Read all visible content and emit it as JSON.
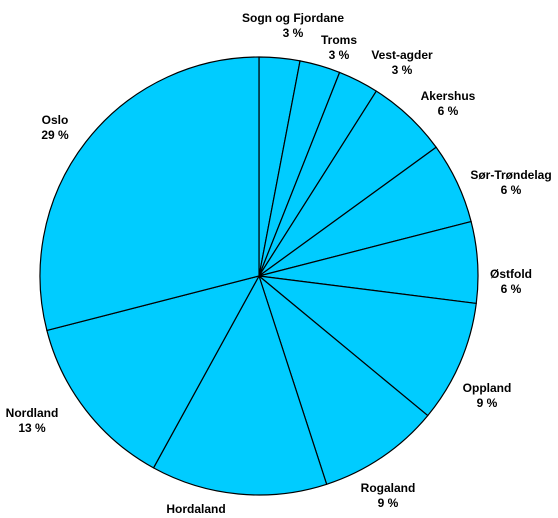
{
  "chart_data": {
    "type": "pie",
    "title": "",
    "slices": [
      {
        "label": "Sogn og Fjordane",
        "value": 3,
        "display": "3 %"
      },
      {
        "label": "Troms",
        "value": 3,
        "display": "3 %"
      },
      {
        "label": "Vest-agder",
        "value": 3,
        "display": "3 %"
      },
      {
        "label": "Akershus",
        "value": 6,
        "display": "6 %"
      },
      {
        "label": "Sør-Trøndelag",
        "value": 6,
        "display": "6 %"
      },
      {
        "label": "Østfold",
        "value": 6,
        "display": "6 %"
      },
      {
        "label": "Oppland",
        "value": 9,
        "display": "9 %"
      },
      {
        "label": "Rogaland",
        "value": 9,
        "display": "9 %"
      },
      {
        "label": "Hordaland",
        "value": 13,
        "display": ""
      },
      {
        "label": "Nordland",
        "value": 13,
        "display": "13 %"
      },
      {
        "label": "Oslo",
        "value": 29,
        "display": "29 %"
      }
    ],
    "colors": {
      "fill": "#00ccff",
      "stroke": "#000000"
    }
  }
}
